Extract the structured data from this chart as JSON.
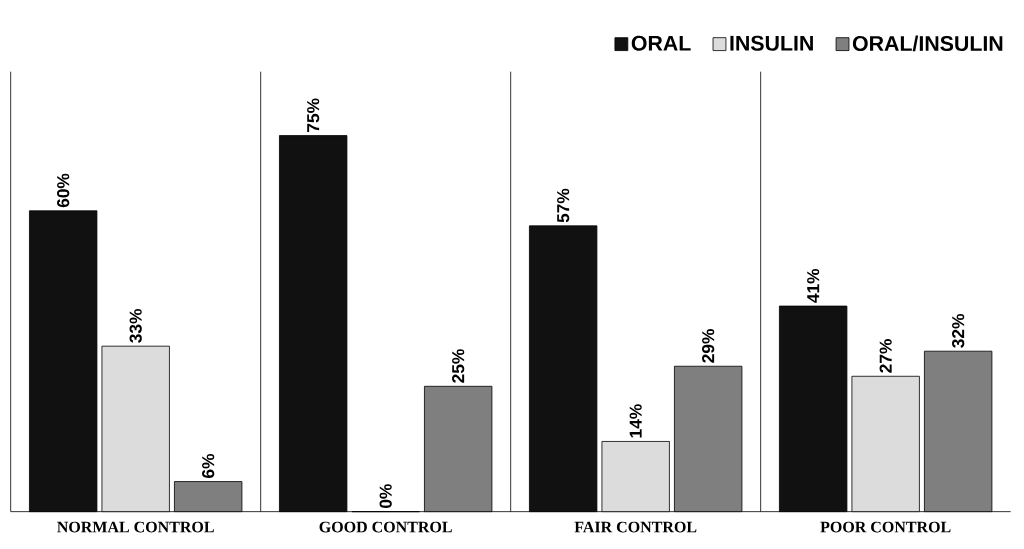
{
  "chart_data": {
    "type": "bar",
    "categories": [
      "NORMAL CONTROL",
      "GOOD CONTROL",
      "FAIR CONTROL",
      "POOR CONTROL"
    ],
    "series": [
      {
        "name": "ORAL",
        "color": "#111111",
        "values": [
          60,
          75,
          57,
          41
        ],
        "value_labels": [
          "60%",
          "75%",
          "57%",
          "41%"
        ]
      },
      {
        "name": "INSULIN",
        "color": "#dcdcdc",
        "values": [
          33,
          0,
          14,
          27
        ],
        "value_labels": [
          "33%",
          "0%",
          "14%",
          "27%"
        ]
      },
      {
        "name": "ORAL/INSULIN",
        "color": "#7f7f7f",
        "values": [
          6,
          25,
          29,
          32
        ],
        "value_labels": [
          "6%",
          "25%",
          "29%",
          "32%"
        ]
      }
    ],
    "legend": "top right"
  }
}
